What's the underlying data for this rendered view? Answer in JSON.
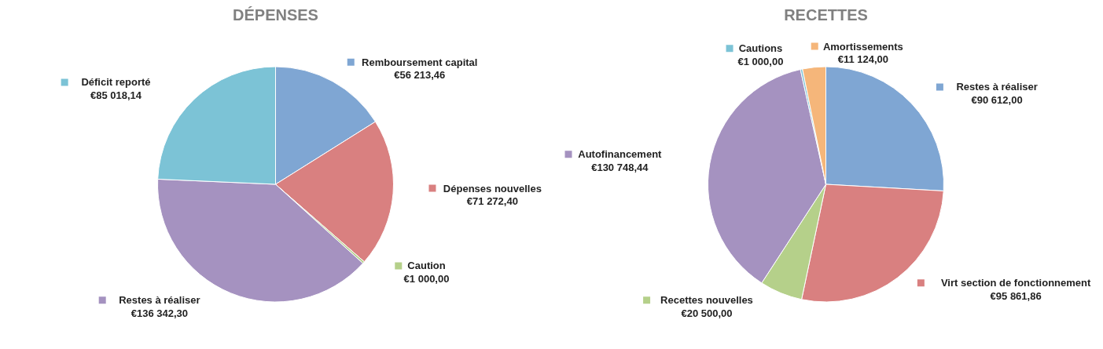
{
  "chart_data": [
    {
      "type": "pie",
      "title": "DÉPENSES",
      "categories": [
        "Remboursement capital",
        "Dépenses nouvelles",
        "Caution",
        "Restes à réaliser",
        "Déficit reporté"
      ],
      "values": [
        56213.46,
        71272.4,
        1000.0,
        136342.3,
        85018.14
      ],
      "colors": [
        "#7fa6d3",
        "#d98080",
        "#b5d08a",
        "#a592c0",
        "#7cc3d6"
      ],
      "value_labels": [
        "€56 213,46",
        "€71 272,40",
        "€1 000,00",
        "€136 342,30",
        "€85 018,14"
      ],
      "legend": "right"
    },
    {
      "type": "pie",
      "title": "RECETTES",
      "categories": [
        "Restes à réaliser",
        "Virt section de fonctionnement",
        "Recettes nouvelles",
        "Autofinancement",
        "Cautions",
        "Amortissements"
      ],
      "values": [
        90612.0,
        95861.86,
        20500.0,
        130748.44,
        1000.0,
        11124.0
      ],
      "colors": [
        "#7fa6d3",
        "#d98080",
        "#b5d08a",
        "#a592c0",
        "#7cc3d6",
        "#f5b67a"
      ],
      "value_labels": [
        "€90 612,00",
        "€95 861,86",
        "€20 500,00",
        "€130 748,44",
        "€1 000,00",
        "€11 124,00"
      ],
      "legend": "right"
    }
  ]
}
